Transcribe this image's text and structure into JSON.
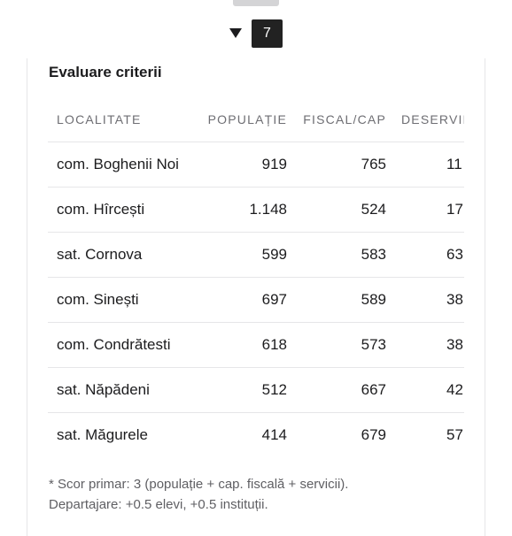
{
  "step": {
    "number": "7"
  },
  "section": {
    "title": "Evaluare criterii"
  },
  "table": {
    "headers": [
      "LOCALITATE",
      "POPULAȚIE",
      "FISCAL/CAP",
      "DESERVIRE"
    ],
    "rows": [
      {
        "locality": "com. Boghenii Noi",
        "population": "919",
        "fiscal": "765",
        "service": "11"
      },
      {
        "locality": "com. Hîrcești",
        "population": "1.148",
        "fiscal": "524",
        "service": "17"
      },
      {
        "locality": "sat. Cornova",
        "population": "599",
        "fiscal": "583",
        "service": "63"
      },
      {
        "locality": "com. Sinești",
        "population": "697",
        "fiscal": "589",
        "service": "38"
      },
      {
        "locality": "com. Condrătesti",
        "population": "618",
        "fiscal": "573",
        "service": "38"
      },
      {
        "locality": "sat. Năpădeni",
        "population": "512",
        "fiscal": "667",
        "service": "42"
      },
      {
        "locality": "sat. Măgurele",
        "population": "414",
        "fiscal": "679",
        "service": "57"
      }
    ]
  },
  "footnote": {
    "line1": "* Scor primar: 3 (populație + cap. fiscală + servicii).",
    "line2": "Departajare: +0.5 elevi, +0.5 instituții."
  },
  "icons": {
    "collapse": "caret-down-icon"
  }
}
